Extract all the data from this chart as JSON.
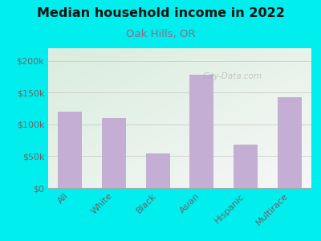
{
  "title": "Median household income in 2022",
  "subtitle": "Oak Hills, OR",
  "categories": [
    "All",
    "White",
    "Black",
    "Asian",
    "Hispanic",
    "Multirace"
  ],
  "values": [
    120000,
    110000,
    55000,
    178000,
    68000,
    143000
  ],
  "bar_color": "#C4AED4",
  "background_color": "#00EEEE",
  "title_color": "#111111",
  "subtitle_color": "#996688",
  "tick_color": "#666666",
  "grid_color": "#cccccc",
  "ylim": [
    0,
    220000
  ],
  "yticks": [
    0,
    50000,
    100000,
    150000,
    200000
  ],
  "ytick_labels": [
    "$0",
    "$50k",
    "$100k",
    "$150k",
    "$200k"
  ],
  "watermark": "City-Data.com",
  "title_fontsize": 11.5,
  "subtitle_fontsize": 9.5,
  "tick_fontsize": 8
}
